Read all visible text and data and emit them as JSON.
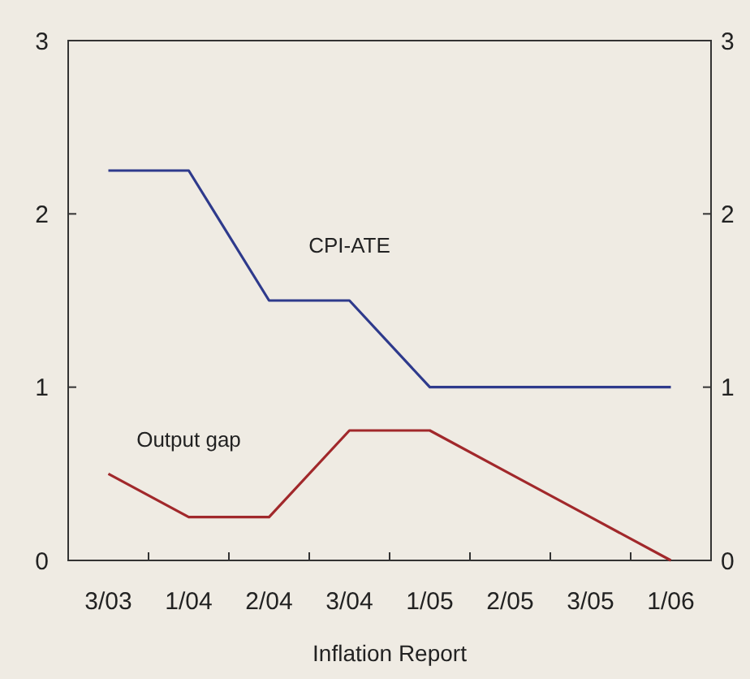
{
  "chart_data": {
    "type": "line",
    "xlabel": "Inflation Report",
    "categories": [
      "3/03",
      "1/04",
      "2/04",
      "3/04",
      "1/05",
      "2/05",
      "3/05",
      "1/06"
    ],
    "series": [
      {
        "name": "CPI-ATE",
        "color": "#2e3a8c",
        "values": [
          2.25,
          2.25,
          1.5,
          1.5,
          1,
          1,
          1,
          1
        ]
      },
      {
        "name": "Output gap",
        "color": "#a1282b",
        "values": [
          0.5,
          0.25,
          0.25,
          0.75,
          0.75,
          0.5,
          0.25,
          0
        ]
      }
    ],
    "ylim": [
      0,
      3
    ],
    "yticks": [
      0,
      1,
      2,
      3
    ],
    "y2lim": [
      0,
      3
    ],
    "y2ticks": [
      0,
      1,
      2,
      3
    ],
    "grid": false,
    "marker": "none",
    "line_style": "solid"
  }
}
